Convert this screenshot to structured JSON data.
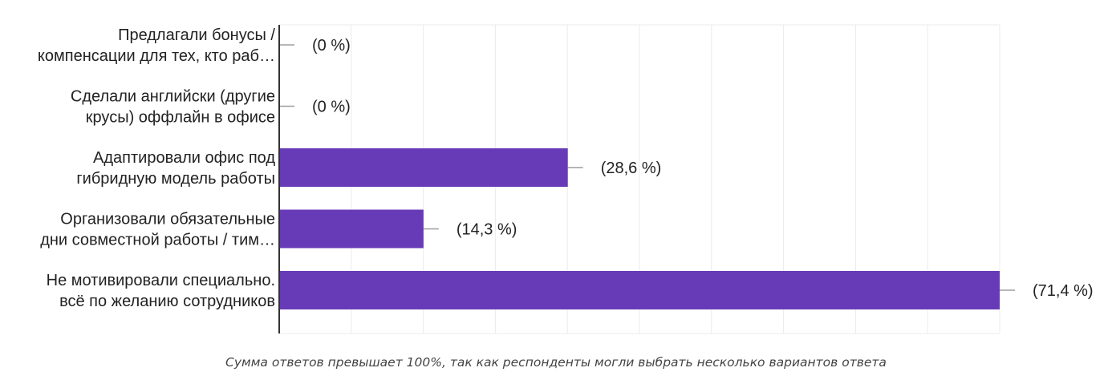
{
  "chart_data": {
    "type": "bar",
    "orientation": "horizontal",
    "categories": [
      [
        "Предлагали бонусы /",
        "компенсации для тех, кто раб…"
      ],
      [
        "Сделали английски (другие",
        "крусы) оффлайн в офисе"
      ],
      [
        "Адаптировали офис под",
        "гибридную модель работы"
      ],
      [
        "Организовали обязательные",
        "дни совместной работы / тим…"
      ],
      [
        "Не мотивировали специально.",
        "всё по желанию сотрудников"
      ]
    ],
    "values": [
      0,
      0,
      28.6,
      14.3,
      71.4
    ],
    "value_labels": [
      "(0 %)",
      "(0 %)",
      "(28,6 %)",
      "(14,3 %)",
      "(71,4 %)"
    ],
    "xlim": [
      0,
      71.4
    ],
    "grid": true,
    "bar_color": "#673ab7",
    "footnote": "Сумма ответов превышает 100%, так как респонденты могли выбрать несколько вариантов ответа"
  }
}
